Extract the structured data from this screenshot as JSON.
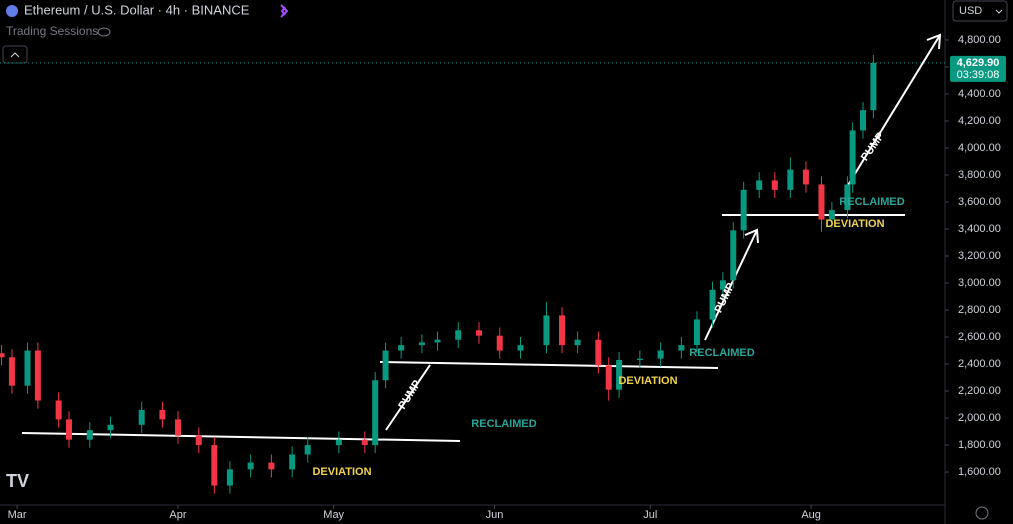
{
  "header": {
    "title": "Ethereum / U.S. Dollar · 4h · BINANCE",
    "indicator": "Trading Sessions",
    "currency": "USD"
  },
  "chart_data": {
    "type": "candlestick",
    "x": [
      -3,
      -1,
      2,
      4,
      8,
      10,
      14,
      18,
      24,
      28,
      31,
      35,
      38,
      41,
      45,
      49,
      53,
      56,
      62,
      67,
      69,
      71,
      74,
      78,
      81,
      85,
      89,
      93,
      97,
      102,
      105,
      108,
      112,
      114,
      116,
      120,
      124,
      128,
      131,
      134,
      136,
      138,
      140,
      143,
      146,
      149,
      152,
      155,
      157,
      160,
      161,
      163,
      165
    ],
    "open": [
      2480,
      2450,
      2240,
      2500,
      2130,
      1990,
      1840,
      1910,
      1950,
      2060,
      1990,
      1870,
      1800,
      1500,
      1620,
      1670,
      1620,
      1730,
      1800,
      1840,
      1800,
      2280,
      2500,
      2540,
      2560,
      2580,
      2650,
      2610,
      2500,
      2540,
      2760,
      2540,
      2580,
      2390,
      2210,
      2430,
      2440,
      2500,
      2540,
      2730,
      2950,
      3020,
      3390,
      3690,
      3760,
      3690,
      3840,
      3730,
      3470,
      3540,
      3730,
      4130,
      4280
    ],
    "high": [
      2540,
      2510,
      2560,
      2560,
      2190,
      2050,
      1970,
      2010,
      2120,
      2120,
      2050,
      1930,
      1860,
      1680,
      1730,
      1730,
      1790,
      1860,
      1900,
      1900,
      2340,
      2560,
      2600,
      2620,
      2640,
      2710,
      2710,
      2670,
      2600,
      2860,
      2820,
      2640,
      2640,
      2450,
      2490,
      2500,
      2560,
      2600,
      2790,
      3010,
      3080,
      3450,
      3750,
      3820,
      3820,
      3930,
      3900,
      3790,
      3600,
      3790,
      4190,
      4340,
      4690
    ],
    "low": [
      2390,
      2180,
      2180,
      2070,
      1930,
      1780,
      1780,
      1850,
      1890,
      1930,
      1810,
      1740,
      1440,
      1440,
      1560,
      1560,
      1560,
      1670,
      1740,
      1740,
      1740,
      2220,
      2440,
      2480,
      2500,
      2520,
      2550,
      2440,
      2440,
      2480,
      2480,
      2480,
      2330,
      2130,
      2150,
      2370,
      2380,
      2440,
      2480,
      2670,
      2890,
      2960,
      3330,
      3630,
      3630,
      3630,
      3670,
      3380,
      3410,
      3480,
      3670,
      4070,
      4220
    ],
    "close": [
      2450,
      2240,
      2500,
      2130,
      1990,
      1840,
      1910,
      1950,
      2060,
      1990,
      1870,
      1800,
      1500,
      1620,
      1670,
      1620,
      1730,
      1800,
      1840,
      1800,
      2280,
      2500,
      2540,
      2560,
      2580,
      2650,
      2610,
      2500,
      2540,
      2760,
      2540,
      2580,
      2390,
      2210,
      2430,
      2440,
      2500,
      2540,
      2730,
      2950,
      3020,
      3390,
      3690,
      3760,
      3690,
      3840,
      3730,
      3470,
      3540,
      3730,
      4130,
      4280,
      4629.9
    ],
    "up_color": "#089981",
    "down_color": "#f23645",
    "xlim": [
      -3.3,
      178.8
    ],
    "xticks": [
      {
        "value": 0,
        "label": "Mar"
      },
      {
        "value": 31,
        "label": "Apr"
      },
      {
        "value": 61,
        "label": "May"
      },
      {
        "value": 92,
        "label": "Jun"
      },
      {
        "value": 122,
        "label": "Jul"
      },
      {
        "value": 153,
        "label": "Aug"
      }
    ],
    "ylim": [
      1356,
      5096
    ],
    "yticks": [
      {
        "value": 1600,
        "label": "1,600.00"
      },
      {
        "value": 1800,
        "label": "1,800.00"
      },
      {
        "value": 2000,
        "label": "2,000.00"
      },
      {
        "value": 2200,
        "label": "2,200.00"
      },
      {
        "value": 2400,
        "label": "2,400.00"
      },
      {
        "value": 2600,
        "label": "2,600.00"
      },
      {
        "value": 2800,
        "label": "2,800.00"
      },
      {
        "value": 3000,
        "label": "3,000.00"
      },
      {
        "value": 3200,
        "label": "3,200.00"
      },
      {
        "value": 3400,
        "label": "3,400.00"
      },
      {
        "value": 3600,
        "label": "3,600.00"
      },
      {
        "value": 3800,
        "label": "3,800.00"
      },
      {
        "value": 4000,
        "label": "4,000.00"
      },
      {
        "value": 4200,
        "label": "4,200.00"
      },
      {
        "value": 4400,
        "label": "4,400.00"
      },
      {
        "value": 4600,
        "label": "4,600.00"
      },
      {
        "value": 4800,
        "label": "4,800.00"
      }
    ],
    "last_price": {
      "value": 4629.9,
      "label": "4,629.90"
    },
    "countdown": "03:39:08",
    "annotations": [
      "PUMP",
      "PUMP",
      "PUMP",
      "RECLAIMED",
      "RECLAIMED",
      "RECLAIMED",
      "DEVIATION",
      "DEVIATION",
      "DEVIATION"
    ]
  }
}
